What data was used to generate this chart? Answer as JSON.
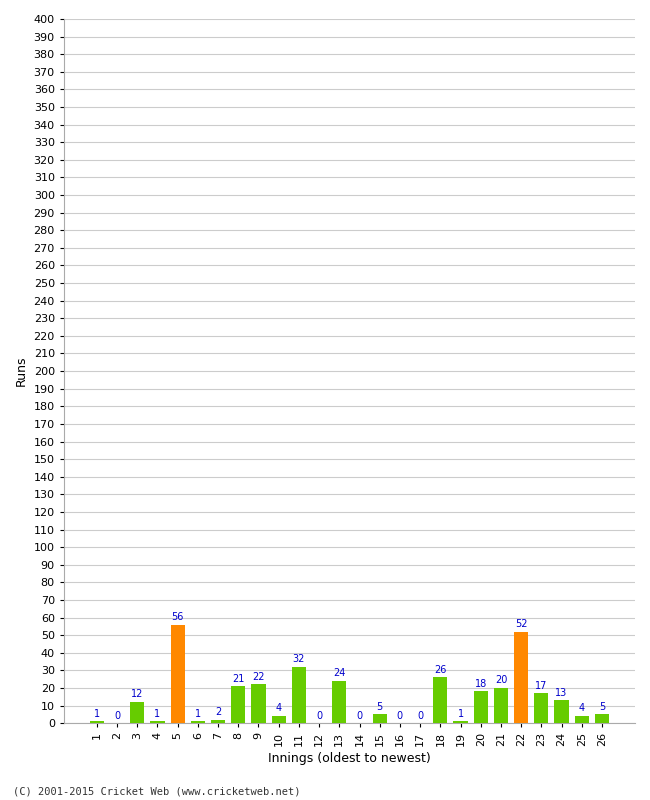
{
  "xlabel": "Innings (oldest to newest)",
  "ylabel": "Runs",
  "innings": [
    1,
    2,
    3,
    4,
    5,
    6,
    7,
    8,
    9,
    10,
    11,
    12,
    13,
    14,
    15,
    16,
    17,
    18,
    19,
    20,
    21,
    22,
    23,
    24,
    25,
    26
  ],
  "values": [
    1,
    0,
    12,
    1,
    56,
    1,
    2,
    21,
    22,
    4,
    32,
    0,
    24,
    0,
    5,
    0,
    0,
    26,
    1,
    18,
    20,
    52,
    17,
    13,
    4,
    5
  ],
  "colors": [
    "#66cc00",
    "#66cc00",
    "#66cc00",
    "#66cc00",
    "#ff8800",
    "#66cc00",
    "#66cc00",
    "#66cc00",
    "#66cc00",
    "#66cc00",
    "#66cc00",
    "#66cc00",
    "#66cc00",
    "#66cc00",
    "#66cc00",
    "#66cc00",
    "#66cc00",
    "#66cc00",
    "#66cc00",
    "#66cc00",
    "#66cc00",
    "#ff8800",
    "#66cc00",
    "#66cc00",
    "#66cc00",
    "#66cc00"
  ],
  "ylim": [
    0,
    400
  ],
  "yticks": [
    0,
    10,
    20,
    30,
    40,
    50,
    60,
    70,
    80,
    90,
    100,
    110,
    120,
    130,
    140,
    150,
    160,
    170,
    180,
    190,
    200,
    210,
    220,
    230,
    240,
    250,
    260,
    270,
    280,
    290,
    300,
    310,
    320,
    330,
    340,
    350,
    360,
    370,
    380,
    390,
    400
  ],
  "background_color": "#ffffff",
  "grid_color": "#cccccc",
  "label_color": "#0000cc",
  "footnote": "(C) 2001-2015 Cricket Web (www.cricketweb.net)"
}
